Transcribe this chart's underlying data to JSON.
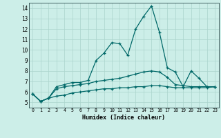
{
  "xlabel": "Humidex (Indice chaleur)",
  "bg_color": "#cceee8",
  "line_color": "#006868",
  "xlim": [
    -0.5,
    23.5
  ],
  "ylim": [
    4.5,
    14.5
  ],
  "xticks": [
    0,
    1,
    2,
    3,
    4,
    5,
    6,
    7,
    8,
    9,
    10,
    11,
    12,
    13,
    14,
    15,
    16,
    17,
    18,
    19,
    20,
    21,
    22,
    23
  ],
  "yticks": [
    5,
    6,
    7,
    8,
    9,
    10,
    11,
    12,
    13,
    14
  ],
  "line1_x": [
    0,
    1,
    2,
    3,
    4,
    5,
    6,
    7,
    8,
    9,
    10,
    11,
    12,
    13,
    14,
    15,
    16,
    17,
    18,
    19,
    20,
    21,
    22,
    23
  ],
  "line1_y": [
    5.8,
    5.1,
    5.4,
    6.5,
    6.7,
    6.9,
    6.9,
    7.1,
    9.0,
    9.7,
    10.7,
    10.6,
    9.5,
    12.0,
    13.2,
    14.2,
    11.7,
    8.3,
    7.9,
    6.5,
    8.0,
    7.3,
    6.5,
    6.5
  ],
  "line2_x": [
    0,
    1,
    2,
    3,
    4,
    5,
    6,
    7,
    8,
    9,
    10,
    11,
    12,
    13,
    14,
    15,
    16,
    17,
    18,
    19,
    20,
    21,
    22,
    23
  ],
  "line2_y": [
    5.8,
    5.1,
    5.4,
    6.3,
    6.5,
    6.6,
    6.7,
    6.8,
    7.0,
    7.1,
    7.2,
    7.3,
    7.5,
    7.7,
    7.9,
    8.0,
    7.9,
    7.4,
    6.7,
    6.6,
    6.5,
    6.5,
    6.5,
    6.5
  ],
  "line3_x": [
    0,
    1,
    2,
    3,
    4,
    5,
    6,
    7,
    8,
    9,
    10,
    11,
    12,
    13,
    14,
    15,
    16,
    17,
    18,
    19,
    20,
    21,
    22,
    23
  ],
  "line3_y": [
    5.8,
    5.1,
    5.4,
    5.6,
    5.7,
    5.9,
    6.0,
    6.1,
    6.2,
    6.3,
    6.3,
    6.4,
    6.4,
    6.5,
    6.5,
    6.6,
    6.6,
    6.5,
    6.4,
    6.4,
    6.4,
    6.4,
    6.4,
    6.5
  ],
  "grid_color": "#aad4cc",
  "spine_color": "#406060"
}
